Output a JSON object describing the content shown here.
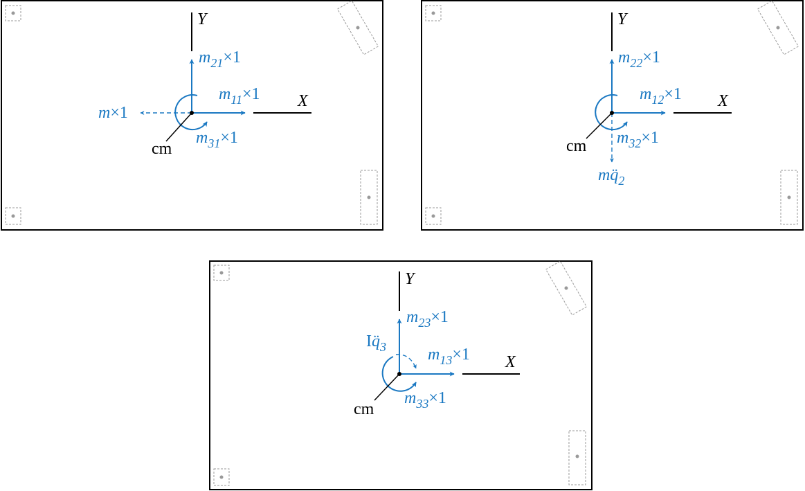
{
  "colors": {
    "ink": "#000000",
    "vector": "#1a78c2",
    "pin": "#999999"
  },
  "panels": [
    {
      "axis_x": "X",
      "axis_y": "Y",
      "cm": "cm",
      "vec_x": {
        "sym": "m",
        "sub": "11",
        "tail": "×1"
      },
      "vec_y": {
        "sym": "m",
        "sub": "21",
        "tail": "×1"
      },
      "vec_rot": {
        "sym": "m",
        "sub": "31",
        "tail": "×1"
      },
      "inertia": {
        "sym": "m",
        "tail": "×1"
      }
    },
    {
      "axis_x": "X",
      "axis_y": "Y",
      "cm": "cm",
      "vec_x": {
        "sym": "m",
        "sub": "12",
        "tail": "×1"
      },
      "vec_y": {
        "sym": "m",
        "sub": "22",
        "tail": "×1"
      },
      "vec_rot": {
        "sym": "m",
        "sub": "32",
        "tail": "×1"
      },
      "inertia": {
        "sym": "m",
        "q": "q̈",
        "sub": "2"
      }
    },
    {
      "axis_x": "X",
      "axis_y": "Y",
      "cm": "cm",
      "vec_x": {
        "sym": "m",
        "sub": "13",
        "tail": "×1"
      },
      "vec_y": {
        "sym": "m",
        "sub": "23",
        "tail": "×1"
      },
      "vec_rot": {
        "sym": "m",
        "sub": "33",
        "tail": "×1"
      },
      "inertia": {
        "sym": "I",
        "q": "q̈",
        "sub": "3"
      }
    }
  ]
}
